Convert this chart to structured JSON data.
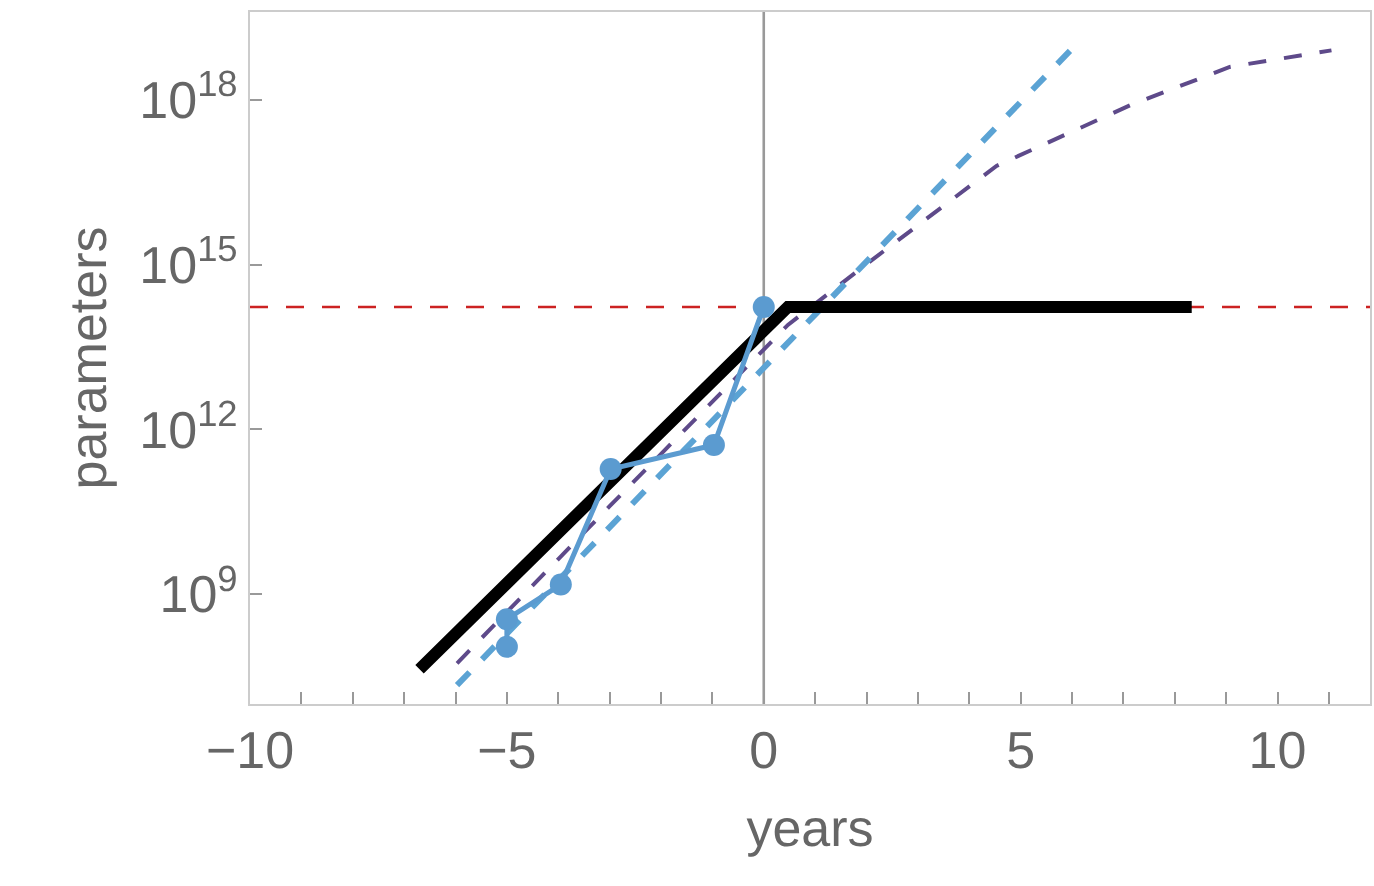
{
  "chart_data": {
    "type": "line",
    "xlabel": "years",
    "ylabel": "parameters",
    "log": "y",
    "xlim": [
      -10,
      11.8
    ],
    "ylim": [
      10000000.0,
      4e+19
    ],
    "xticks": [
      {
        "value": -10,
        "label": "−10"
      },
      {
        "value": -9,
        "label": null
      },
      {
        "value": -8,
        "label": null
      },
      {
        "value": -7,
        "label": null
      },
      {
        "value": -6,
        "label": null
      },
      {
        "value": -5,
        "label": "−5"
      },
      {
        "value": -4,
        "label": null
      },
      {
        "value": -3,
        "label": null
      },
      {
        "value": -2,
        "label": null
      },
      {
        "value": -1,
        "label": null
      },
      0,
      {
        "value": 1,
        "label": null
      },
      {
        "value": 2,
        "label": null
      },
      {
        "value": 3,
        "label": null
      },
      {
        "value": 4,
        "label": null
      },
      5,
      {
        "value": 6,
        "label": null
      },
      {
        "value": 7,
        "label": null
      },
      {
        "value": 8,
        "label": null
      },
      {
        "value": 9,
        "label": null
      },
      10,
      {
        "value": 11,
        "label": null
      }
    ],
    "yticks": [
      {
        "value": 1000000000.0,
        "label": "10$^{9}$"
      },
      {
        "value": 1000000000000.0,
        "label": "10$^{12}$"
      },
      {
        "value": 1000000000000000.0,
        "label": "10$^{15}$"
      },
      {
        "value": 1e+18,
        "label": "10$^{18}$"
      }
    ],
    "grid": false,
    "ref_lines": [
      {
        "axis": "y",
        "value": 170000000000000.0,
        "color": "#cc2222",
        "line_style": "dashed"
      },
      {
        "axis": "x",
        "value": 0,
        "color": "#999999",
        "line_style": "solid"
      }
    ],
    "series": [
      {
        "color": "#5e4a8a",
        "line_style": "dashed",
        "marker": "none",
        "x": [
          -5.97,
          -3,
          0.47,
          1.94,
          4.53,
          7.13,
          9.07,
          11.05
        ],
        "values": [
          55000000.0,
          40000000000.0,
          80000000000000.0,
          930000000000000.0,
          6.3e+16,
          8e+17,
          4e+18,
          8e+18
        ]
      },
      {
        "color": "#5ba3d4",
        "line_style": "dashed",
        "marker": "none",
        "x": [
          -5.97,
          5.97
        ],
        "values": [
          22000000.0,
          8e+18
        ]
      },
      {
        "color": "#000000",
        "line_style": "solid",
        "marker": "none",
        "x": [
          -6.7,
          0.47,
          8.33
        ],
        "values": [
          43000000.0,
          170000000000000.0,
          170000000000000.0
        ]
      },
      {
        "color": "#5b9bd0",
        "line_style": "solid",
        "marker": "circle",
        "x": [
          -5,
          -5,
          -3.95,
          -2.98,
          -0.97,
          0
        ],
        "values": [
          110000000.0,
          350000000.0,
          1500000000.0,
          190000000000.0,
          520000000000.0,
          170000000000000.0
        ]
      }
    ]
  }
}
